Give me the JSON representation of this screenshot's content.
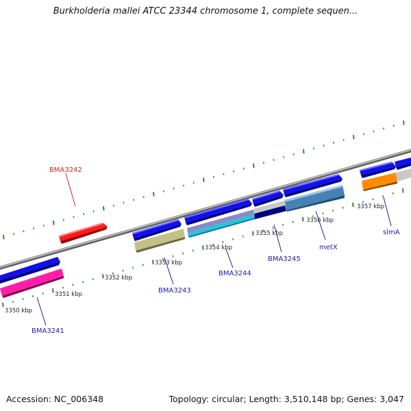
{
  "title": "Burkholderia mallei ATCC 23344 chromosome 1, complete sequen...",
  "footer": {
    "accession": "Accession: NC_006348",
    "summary": "Topology: circular; Length: 3,510,148 bp; Genes: 3,047"
  },
  "colors": {
    "backbone": "#8c8c8c",
    "ticks": "#2e8b2e",
    "gene_label": "#1a1aa6",
    "highlight_label": "#d42020"
  },
  "ruler": [
    {
      "id": "3350",
      "label": "3350 kbp"
    },
    {
      "id": "3351",
      "label": "3351 kbp"
    },
    {
      "id": "3352",
      "label": "3352 kbp"
    },
    {
      "id": "3353",
      "label": "3353 kbp"
    },
    {
      "id": "3354",
      "label": "3354 kbp"
    },
    {
      "id": "3355",
      "label": "3355 kbp"
    },
    {
      "id": "3356",
      "label": "3356 kbp"
    },
    {
      "id": "3357",
      "label": "3357 kbp"
    }
  ],
  "genes": [
    {
      "id": "bma3241",
      "label": "BMA3241",
      "color": "#1a1aa6"
    },
    {
      "id": "bma3242",
      "label": "BMA3242",
      "color": "#d42020"
    },
    {
      "id": "bma3243",
      "label": "BMA3243",
      "color": "#1a1aa6"
    },
    {
      "id": "bma3244",
      "label": "BMA3244",
      "color": "#1a1aa6"
    },
    {
      "id": "bma3245",
      "label": "BMA3245",
      "color": "#1a1aa6"
    },
    {
      "id": "metx",
      "label": "metX",
      "color": "#1a1aa6"
    },
    {
      "id": "slma",
      "label": "slmA",
      "color": "#1a1aa6"
    }
  ]
}
